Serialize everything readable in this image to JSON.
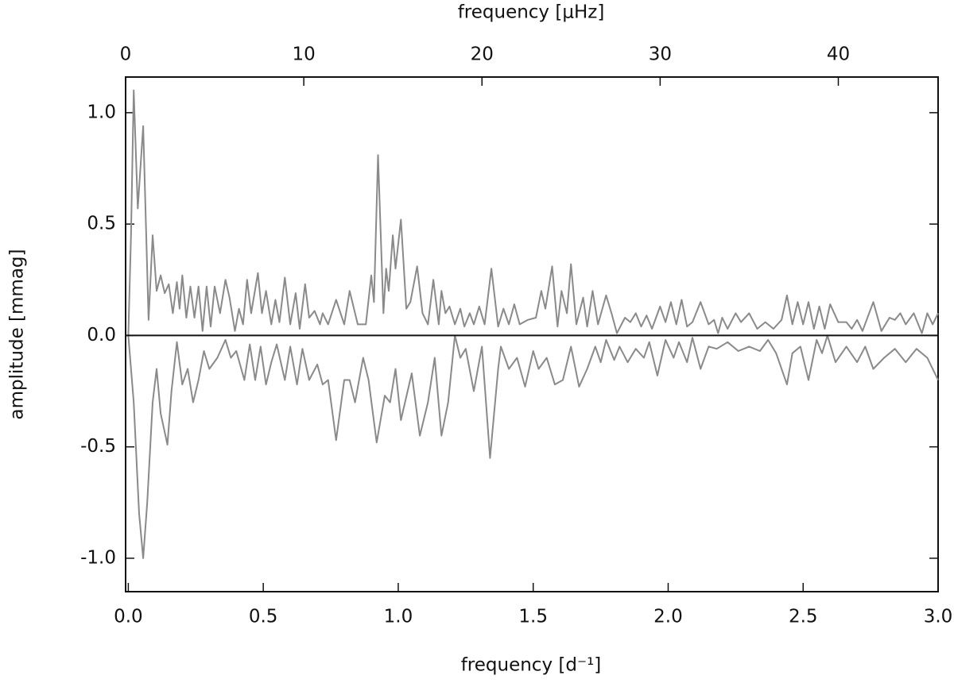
{
  "chart_data": {
    "type": "line",
    "xlabel": "frequency [d⁻¹]",
    "x2label": "frequency [μHz]",
    "ylabel": "amplitude [mmag]",
    "xlim": [
      -0.01,
      3.0
    ],
    "xticks": [
      {
        "value": 0,
        "label": "0.0"
      },
      {
        "value": 0.5,
        "label": "0.5"
      },
      {
        "value": 1,
        "label": "1.0"
      },
      {
        "value": 1.5,
        "label": "1.5"
      },
      {
        "value": 2,
        "label": "2.0"
      },
      {
        "value": 2.5,
        "label": "2.5"
      },
      {
        "value": 3,
        "label": "3.0"
      }
    ],
    "x2lim": [
      0,
      45.6
    ],
    "x2ticks": [
      0,
      10,
      20,
      30,
      40
    ],
    "ylim": [
      -1.15,
      1.16
    ],
    "yticks": [
      {
        "value": -1,
        "label": "-1.0"
      },
      {
        "value": -0.5,
        "label": "-0.5"
      },
      {
        "value": 0,
        "label": "0.0"
      },
      {
        "value": 0.5,
        "label": "0.5"
      },
      {
        "value": 1,
        "label": "1.0"
      }
    ],
    "zero_line": true,
    "series": [
      {
        "color": "#8a8a8a",
        "x": [
          0.0,
          0.01,
          0.02,
          0.035,
          0.055,
          0.075,
          0.09,
          0.105,
          0.12,
          0.135,
          0.15,
          0.165,
          0.18,
          0.19,
          0.2,
          0.215,
          0.23,
          0.245,
          0.26,
          0.275,
          0.29,
          0.305,
          0.32,
          0.34,
          0.36,
          0.375,
          0.395,
          0.41,
          0.425,
          0.44,
          0.455,
          0.48,
          0.495,
          0.51,
          0.53,
          0.545,
          0.56,
          0.58,
          0.6,
          0.62,
          0.635,
          0.655,
          0.67,
          0.69,
          0.71,
          0.72,
          0.74,
          0.77,
          0.8,
          0.82,
          0.85,
          0.88,
          0.9,
          0.91,
          0.925,
          0.945,
          0.955,
          0.965,
          0.98,
          0.99,
          1.01,
          1.03,
          1.045,
          1.07,
          1.09,
          1.11,
          1.13,
          1.15,
          1.16,
          1.175,
          1.19,
          1.21,
          1.23,
          1.245,
          1.265,
          1.28,
          1.3,
          1.32,
          1.345,
          1.37,
          1.39,
          1.41,
          1.43,
          1.45,
          1.48,
          1.51,
          1.53,
          1.545,
          1.57,
          1.59,
          1.605,
          1.625,
          1.64,
          1.66,
          1.685,
          1.7,
          1.72,
          1.74,
          1.77,
          1.79,
          1.81,
          1.84,
          1.86,
          1.88,
          1.9,
          1.92,
          1.94,
          1.97,
          1.99,
          2.01,
          2.03,
          2.05,
          2.07,
          2.09,
          2.12,
          2.15,
          2.17,
          2.185,
          2.2,
          2.22,
          2.25,
          2.27,
          2.3,
          2.33,
          2.36,
          2.39,
          2.42,
          2.44,
          2.46,
          2.48,
          2.5,
          2.52,
          2.54,
          2.56,
          2.58,
          2.6,
          2.63,
          2.66,
          2.68,
          2.7,
          2.72,
          2.76,
          2.79,
          2.82,
          2.84,
          2.86,
          2.88,
          2.91,
          2.94,
          2.96,
          2.98,
          3.0
        ],
        "values": [
          0.0,
          0.45,
          1.1,
          0.57,
          0.94,
          0.07,
          0.45,
          0.2,
          0.27,
          0.19,
          0.23,
          0.1,
          0.24,
          0.12,
          0.27,
          0.08,
          0.22,
          0.08,
          0.22,
          0.02,
          0.22,
          0.04,
          0.22,
          0.1,
          0.25,
          0.17,
          0.02,
          0.12,
          0.05,
          0.25,
          0.1,
          0.28,
          0.1,
          0.2,
          0.05,
          0.16,
          0.06,
          0.26,
          0.05,
          0.19,
          0.03,
          0.23,
          0.08,
          0.11,
          0.05,
          0.1,
          0.05,
          0.16,
          0.05,
          0.2,
          0.05,
          0.05,
          0.27,
          0.15,
          0.81,
          0.1,
          0.3,
          0.2,
          0.45,
          0.3,
          0.52,
          0.12,
          0.15,
          0.31,
          0.1,
          0.05,
          0.25,
          0.05,
          0.2,
          0.1,
          0.13,
          0.05,
          0.12,
          0.04,
          0.1,
          0.05,
          0.13,
          0.05,
          0.3,
          0.04,
          0.12,
          0.05,
          0.14,
          0.05,
          0.07,
          0.08,
          0.2,
          0.12,
          0.31,
          0.04,
          0.2,
          0.1,
          0.32,
          0.05,
          0.17,
          0.04,
          0.2,
          0.05,
          0.18,
          0.1,
          0.01,
          0.08,
          0.06,
          0.1,
          0.04,
          0.09,
          0.03,
          0.13,
          0.06,
          0.15,
          0.05,
          0.16,
          0.04,
          0.06,
          0.15,
          0.05,
          0.07,
          0.01,
          0.08,
          0.03,
          0.1,
          0.06,
          0.1,
          0.03,
          0.06,
          0.03,
          0.07,
          0.18,
          0.05,
          0.15,
          0.05,
          0.15,
          0.03,
          0.13,
          0.03,
          0.14,
          0.06,
          0.06,
          0.03,
          0.07,
          0.02,
          0.15,
          0.02,
          0.08,
          0.07,
          0.1,
          0.05,
          0.1,
          0.01,
          0.1,
          0.05,
          0.1
        ]
      },
      {
        "color": "#8a8a8a",
        "x": [
          0.0,
          0.02,
          0.04,
          0.055,
          0.07,
          0.09,
          0.105,
          0.12,
          0.145,
          0.16,
          0.18,
          0.2,
          0.22,
          0.24,
          0.26,
          0.28,
          0.3,
          0.33,
          0.36,
          0.38,
          0.4,
          0.43,
          0.45,
          0.47,
          0.49,
          0.51,
          0.53,
          0.55,
          0.58,
          0.6,
          0.625,
          0.645,
          0.67,
          0.7,
          0.72,
          0.74,
          0.77,
          0.8,
          0.82,
          0.84,
          0.87,
          0.89,
          0.92,
          0.95,
          0.97,
          0.99,
          1.01,
          1.05,
          1.08,
          1.11,
          1.135,
          1.16,
          1.185,
          1.21,
          1.23,
          1.25,
          1.28,
          1.31,
          1.34,
          1.37,
          1.38,
          1.41,
          1.44,
          1.47,
          1.5,
          1.52,
          1.55,
          1.58,
          1.61,
          1.64,
          1.67,
          1.7,
          1.73,
          1.75,
          1.77,
          1.8,
          1.82,
          1.85,
          1.88,
          1.91,
          1.93,
          1.96,
          1.99,
          2.02,
          2.04,
          2.07,
          2.09,
          2.12,
          2.15,
          2.18,
          2.22,
          2.26,
          2.3,
          2.34,
          2.37,
          2.4,
          2.44,
          2.46,
          2.49,
          2.52,
          2.55,
          2.57,
          2.59,
          2.62,
          2.66,
          2.7,
          2.73,
          2.76,
          2.8,
          2.84,
          2.88,
          2.92,
          2.96,
          3.0
        ],
        "values": [
          0.0,
          -0.3,
          -0.8,
          -1.0,
          -0.75,
          -0.3,
          -0.15,
          -0.35,
          -0.49,
          -0.25,
          -0.03,
          -0.22,
          -0.15,
          -0.3,
          -0.2,
          -0.07,
          -0.15,
          -0.1,
          -0.02,
          -0.1,
          -0.07,
          -0.2,
          -0.04,
          -0.2,
          -0.05,
          -0.22,
          -0.12,
          -0.04,
          -0.2,
          -0.05,
          -0.22,
          -0.06,
          -0.2,
          -0.13,
          -0.22,
          -0.2,
          -0.47,
          -0.2,
          -0.2,
          -0.3,
          -0.1,
          -0.2,
          -0.48,
          -0.27,
          -0.3,
          -0.15,
          -0.38,
          -0.17,
          -0.45,
          -0.3,
          -0.1,
          -0.45,
          -0.3,
          0.0,
          -0.1,
          -0.06,
          -0.25,
          -0.05,
          -0.55,
          -0.15,
          -0.05,
          -0.15,
          -0.1,
          -0.23,
          -0.07,
          -0.15,
          -0.1,
          -0.22,
          -0.2,
          -0.05,
          -0.23,
          -0.15,
          -0.05,
          -0.12,
          -0.02,
          -0.11,
          -0.05,
          -0.12,
          -0.06,
          -0.1,
          -0.03,
          -0.18,
          -0.02,
          -0.1,
          -0.03,
          -0.12,
          -0.01,
          -0.15,
          -0.05,
          -0.06,
          -0.03,
          -0.07,
          -0.05,
          -0.07,
          -0.02,
          -0.08,
          -0.22,
          -0.08,
          -0.05,
          -0.2,
          -0.02,
          -0.08,
          0.0,
          -0.12,
          -0.05,
          -0.12,
          -0.05,
          -0.15,
          -0.1,
          -0.06,
          -0.12,
          -0.06,
          -0.1,
          -0.2
        ]
      }
    ]
  }
}
